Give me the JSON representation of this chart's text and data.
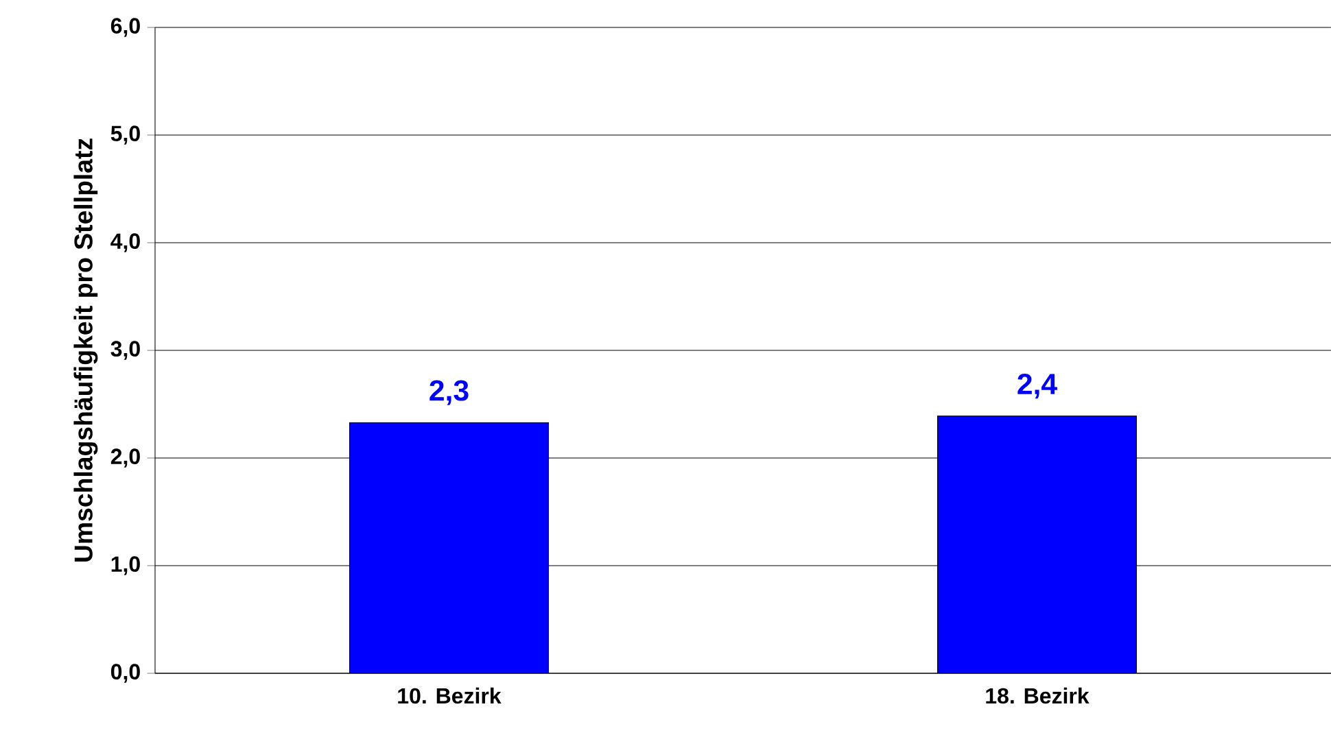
{
  "chart_data": {
    "type": "bar",
    "ylabel": "Umschlagshäufigkeit pro Stellplatz",
    "categories": [
      "10. Bezirk",
      "18. Bezirk"
    ],
    "values": [
      2.33,
      2.39
    ],
    "value_labels": [
      "2,3",
      "2,4"
    ],
    "color": "#0000ff",
    "ylim": [
      0,
      6
    ],
    "yticks": [
      {
        "value": 0,
        "label": "0,0"
      },
      {
        "value": 1,
        "label": "1,0"
      },
      {
        "value": 2,
        "label": "2,0"
      },
      {
        "value": 3,
        "label": "3,0"
      },
      {
        "value": 4,
        "label": "4,0"
      },
      {
        "value": 5,
        "label": "5,0"
      },
      {
        "value": 6,
        "label": "6,0"
      }
    ],
    "grid": "y"
  }
}
